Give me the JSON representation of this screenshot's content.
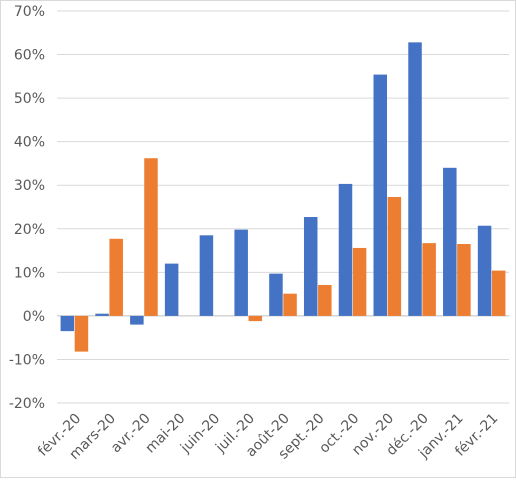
{
  "chart_data": {
    "type": "bar",
    "categories": [
      "févr.-20",
      "mars-20",
      "avr.-20",
      "mai-20",
      "juin-20",
      "juil.-20",
      "août-20",
      "sept.-20",
      "oct.-20",
      "nov.-20",
      "déc.-20",
      "janv.-21",
      "févr.-21"
    ],
    "series": [
      {
        "color": "#4472c4",
        "values": [
          -3.5,
          0.5,
          -2,
          12,
          18.5,
          19.8,
          9.7,
          22.7,
          30.3,
          55.4,
          62.8,
          34,
          20.7
        ]
      },
      {
        "color": "#ed7d31",
        "values": [
          -8.2,
          17.7,
          36.2,
          0,
          0,
          -1.2,
          5.1,
          7.1,
          15.6,
          27.3,
          16.7,
          16.5,
          10.4
        ]
      }
    ],
    "yticks": [
      "-20%",
      "-10%",
      "0%",
      "10%",
      "20%",
      "30%",
      "40%",
      "50%",
      "60%",
      "70%"
    ],
    "ylim": [
      -20,
      70
    ],
    "grid": true,
    "legend": "none"
  }
}
